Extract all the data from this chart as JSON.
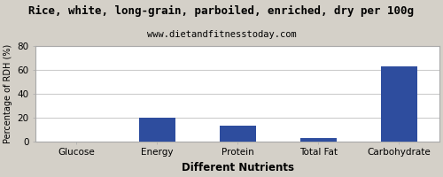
{
  "title": "Rice, white, long-grain, parboiled, enriched, dry per 100g",
  "subtitle": "www.dietandfitnesstoday.com",
  "xlabel": "Different Nutrients",
  "ylabel": "Percentage of RDH (%)",
  "categories": [
    "Glucose",
    "Energy",
    "Protein",
    "Total Fat",
    "Carbohydrate"
  ],
  "values": [
    0,
    20,
    13.5,
    2.5,
    63
  ],
  "bar_color": "#2e4d9e",
  "ylim": [
    0,
    80
  ],
  "yticks": [
    0,
    20,
    40,
    60,
    80
  ],
  "background_color": "#d4d0c8",
  "plot_bg_color": "#ffffff",
  "title_fontsize": 9,
  "subtitle_fontsize": 7.5,
  "xlabel_fontsize": 8.5,
  "ylabel_fontsize": 7,
  "tick_fontsize": 7.5,
  "bar_width": 0.45
}
